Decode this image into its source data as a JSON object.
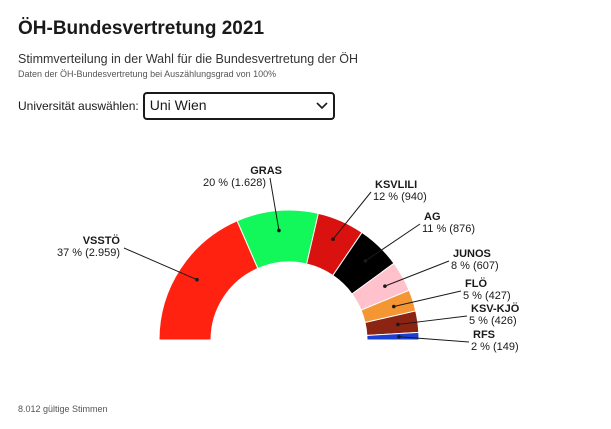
{
  "header": {
    "title": "ÖH-Bundesvertretung 2021",
    "subtitle": "Stimmverteilung in der Wahl für die Bundesvertretung der ÖH",
    "note": "Daten der ÖH-Bundesvertretung bei Auszählungsgrad von 100%"
  },
  "selector": {
    "label": "Universität auswählen:",
    "value": "Uni Wien"
  },
  "footer": {
    "total": "8.012 gültige Stimmen"
  },
  "chart_data": {
    "type": "pie",
    "variant": "semicircle-donut",
    "total_votes": 8012,
    "slices": [
      {
        "name": "VSSTÖ",
        "percent": 37,
        "votes": 2959,
        "label": "37 % (2.959)",
        "color": "#ff2211"
      },
      {
        "name": "GRAS",
        "percent": 20,
        "votes": 1628,
        "label": "20 % (1.628)",
        "color": "#12f75a"
      },
      {
        "name": "KSVLILI",
        "percent": 12,
        "votes": 940,
        "label": "12 % (940)",
        "color": "#d9110f"
      },
      {
        "name": "AG",
        "percent": 11,
        "votes": 876,
        "label": "11 % (876)",
        "color": "#000000"
      },
      {
        "name": "JUNOS",
        "percent": 8,
        "votes": 607,
        "label": "8 % (607)",
        "color": "#ffc1cb"
      },
      {
        "name": "FLÖ",
        "percent": 5,
        "votes": 427,
        "label": "5 % (427)",
        "color": "#f59635"
      },
      {
        "name": "KSV-KJÖ",
        "percent": 5,
        "votes": 426,
        "label": "5 % (426)",
        "color": "#8c2413"
      },
      {
        "name": "RFS",
        "percent": 2,
        "votes": 149,
        "label": "2 % (149)",
        "color": "#1a3fd4"
      }
    ]
  }
}
